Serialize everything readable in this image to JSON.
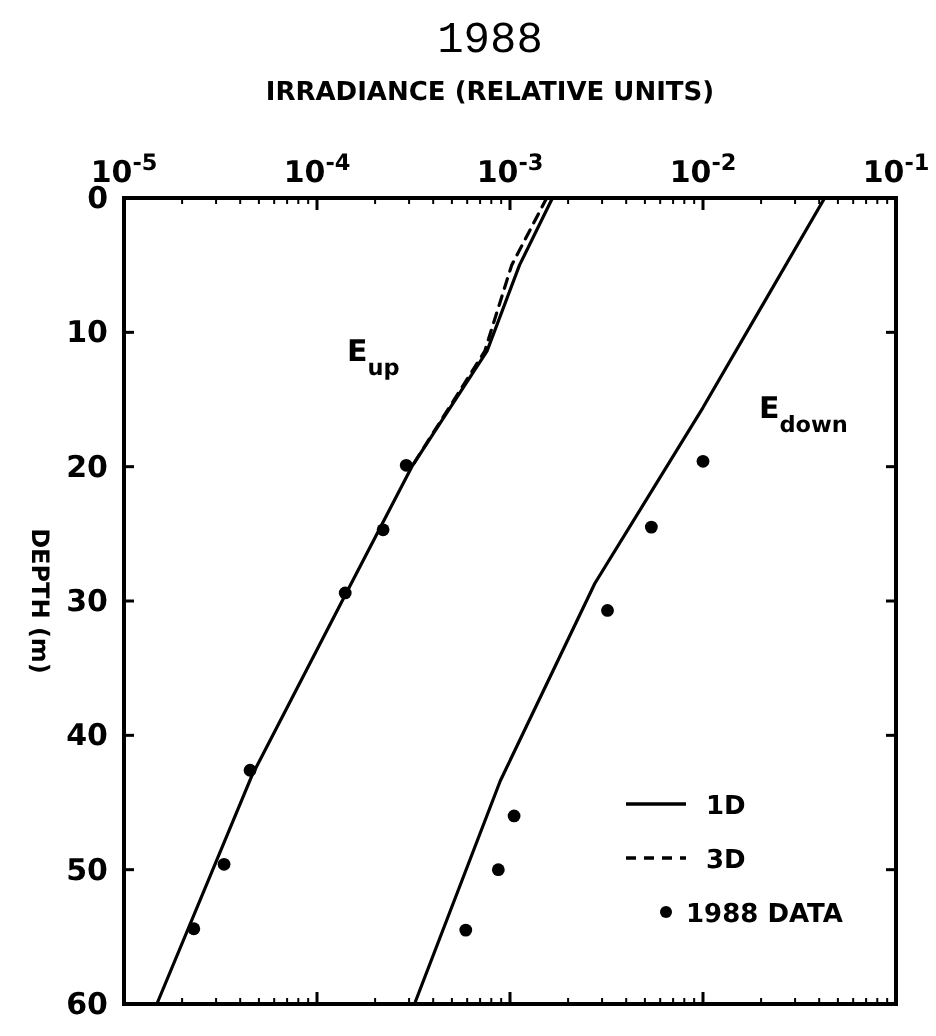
{
  "chart_data": {
    "type": "line",
    "title": "1988",
    "xlabel": "IRRADIANCE (RELATIVE UNITS)",
    "ylabel": "DEPTH (m)",
    "log": "x",
    "xlim": [
      1e-05,
      0.1
    ],
    "xticks": [
      {
        "value": 1e-05,
        "label": "10$^{-5}$"
      },
      {
        "value": 0.0001,
        "label": "10$^{-4}$"
      },
      {
        "value": 0.001,
        "label": "10$^{-3}$"
      },
      {
        "value": 0.01,
        "label": "10$^{-2}$"
      },
      {
        "value": 0.1,
        "label": "10$^{-1}$"
      }
    ],
    "ylim": [
      60,
      0
    ],
    "yticks": [
      0,
      10,
      20,
      30,
      40,
      50,
      60
    ],
    "grid": false,
    "legend": "bottom right",
    "annotations": [
      "E$_{up}$",
      "E$_{down}$"
    ],
    "series": [
      {
        "name": "1D",
        "color": "#000000",
        "line_style": "solid",
        "marker": "none",
        "x": [
          0.00166,
          0.00112,
          0.00076,
          0.00031,
          0.000135,
          4.6e-05,
          1.48e-05
        ],
        "values": [
          0,
          5,
          11.4,
          20,
          30,
          43,
          60
        ]
      },
      {
        "color": "#000000",
        "line_style": "solid",
        "marker": "none",
        "x": [
          0.0427,
          0.01,
          0.00275,
          0.00089,
          0.00032
        ],
        "values": [
          0,
          15.6,
          28.7,
          43.4,
          60
        ]
      },
      {
        "name": "3D",
        "color": "#000000",
        "line_style": "dashed",
        "marker": "none",
        "x": [
          0.00155,
          0.00102,
          0.00074,
          0.00031
        ],
        "values": [
          0,
          5,
          11.4,
          20
        ]
      },
      {
        "name": "1988 DATA",
        "type": "scatter",
        "color": "#000000",
        "marker": "circle",
        "x": [
          0.00029,
          0.00022,
          0.00014,
          4.5e-05,
          3.3e-05,
          2.3e-05,
          0.01,
          0.0054,
          0.0032,
          0.00105,
          0.00087,
          0.00059
        ],
        "values": [
          19.9,
          24.7,
          29.4,
          42.6,
          49.6,
          54.4,
          19.6,
          24.5,
          30.7,
          46,
          50,
          54.5
        ]
      }
    ]
  }
}
